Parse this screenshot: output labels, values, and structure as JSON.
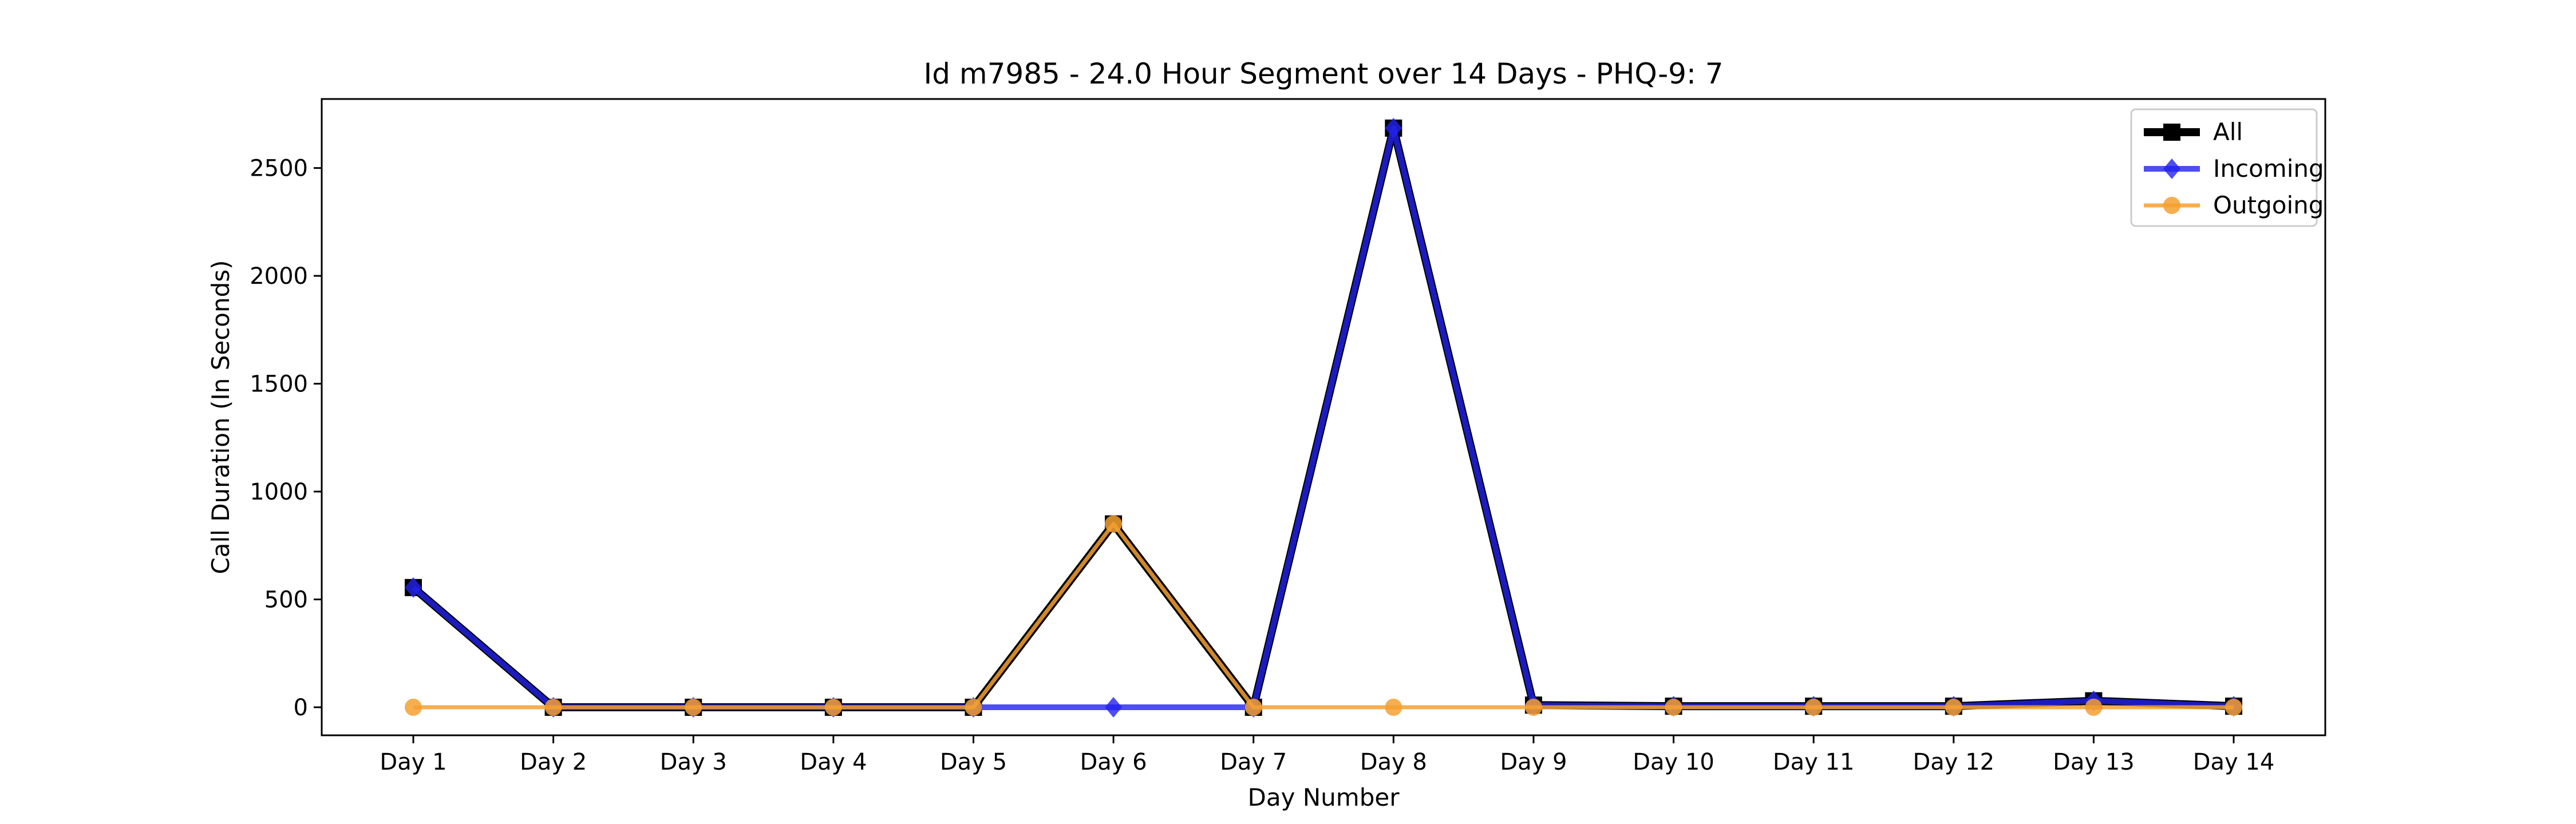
{
  "chart_data": {
    "type": "line",
    "title": "Id m7985 - 24.0 Hour Segment over 14 Days - PHQ-9: 7",
    "xlabel": "Day Number",
    "ylabel": "Call Duration (In Seconds)",
    "categories": [
      "Day 1",
      "Day 2",
      "Day 3",
      "Day 4",
      "Day 5",
      "Day 6",
      "Day 7",
      "Day 8",
      "Day 9",
      "Day 10",
      "Day 11",
      "Day 12",
      "Day 13",
      "Day 14"
    ],
    "ylim": [
      -130,
      2820
    ],
    "yticks": [
      0,
      500,
      1000,
      1500,
      2000,
      2500
    ],
    "grid": false,
    "legend_position": "top-right",
    "series": [
      {
        "name": "All",
        "color": "#000000",
        "marker": "square",
        "values": [
          555,
          0,
          0,
          0,
          0,
          850,
          0,
          2685,
          10,
          5,
          5,
          5,
          30,
          5
        ]
      },
      {
        "name": "Incoming",
        "color": "#2222ee",
        "marker": "diamond",
        "values": [
          555,
          0,
          0,
          0,
          0,
          0,
          0,
          2685,
          10,
          5,
          5,
          5,
          30,
          5
        ]
      },
      {
        "name": "Outgoing",
        "color": "#f5a030",
        "marker": "circle",
        "values": [
          0,
          0,
          0,
          0,
          0,
          850,
          0,
          0,
          0,
          0,
          0,
          0,
          0,
          0
        ]
      }
    ]
  }
}
